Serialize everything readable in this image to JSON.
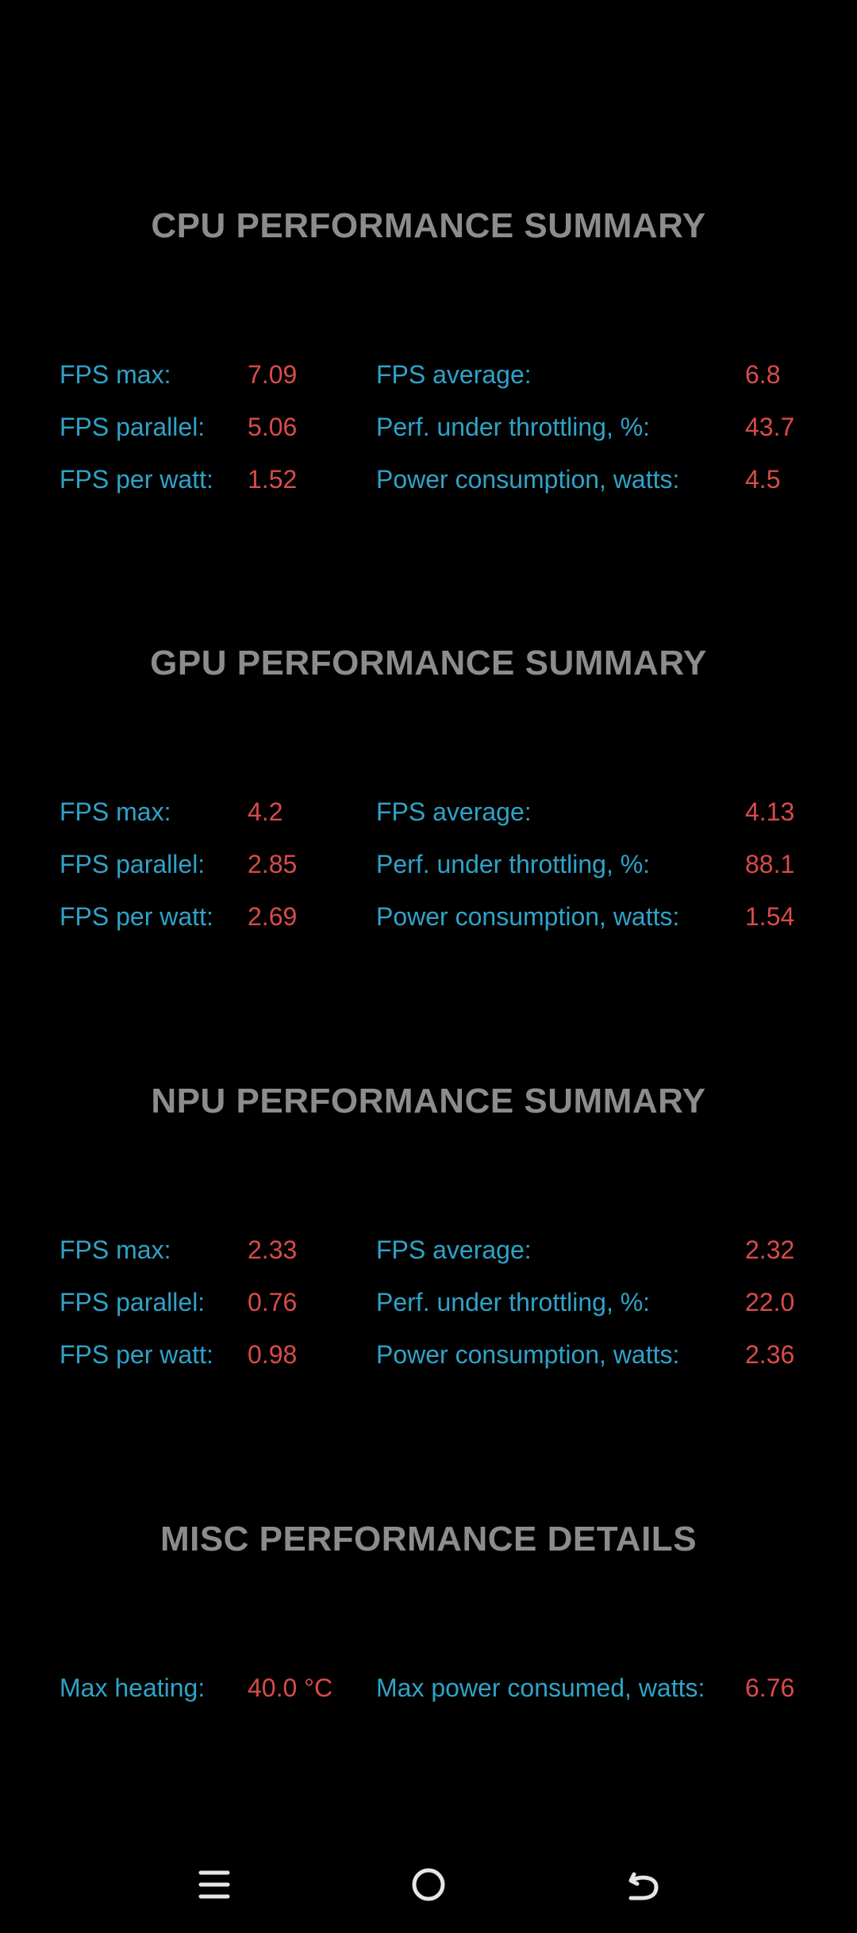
{
  "sections": [
    {
      "title": "CPU PERFORMANCE SUMMARY",
      "rows": [
        {
          "l1": "FPS max:",
          "v1": "7.09",
          "l2": "FPS average:",
          "v2": "6.8"
        },
        {
          "l1": "FPS parallel:",
          "v1": "5.06",
          "l2": "Perf. under throttling, %:",
          "v2": "43.7"
        },
        {
          "l1": "FPS per watt:",
          "v1": "1.52",
          "l2": "Power consumption, watts:",
          "v2": "4.5"
        }
      ]
    },
    {
      "title": "GPU PERFORMANCE SUMMARY",
      "rows": [
        {
          "l1": "FPS max:",
          "v1": "4.2",
          "l2": "FPS average:",
          "v2": "4.13"
        },
        {
          "l1": "FPS parallel:",
          "v1": "2.85",
          "l2": "Perf. under throttling, %:",
          "v2": "88.1"
        },
        {
          "l1": "FPS per watt:",
          "v1": "2.69",
          "l2": "Power consumption, watts:",
          "v2": "1.54"
        }
      ]
    },
    {
      "title": "NPU PERFORMANCE SUMMARY",
      "rows": [
        {
          "l1": "FPS max:",
          "v1": "2.33",
          "l2": "FPS average:",
          "v2": "2.32"
        },
        {
          "l1": "FPS parallel:",
          "v1": "0.76",
          "l2": "Perf. under throttling, %:",
          "v2": "22.0"
        },
        {
          "l1": "FPS per watt:",
          "v1": "0.98",
          "l2": "Power consumption, watts:",
          "v2": "2.36"
        }
      ]
    }
  ],
  "misc": {
    "title": "MISC PERFORMANCE DETAILS",
    "l1": "Max heating:",
    "v1": "40.0 °C",
    "l2": "Max power consumed, watts:",
    "v2": "6.76"
  },
  "navbar": {
    "menu_icon": "menu-icon",
    "home_icon": "home-circle-icon",
    "back_icon": "back-arrow-icon"
  },
  "colors": {
    "background": "#000000",
    "title": "#8c8c8c",
    "label": "#2fa3c8",
    "value": "#d94b4b",
    "nav_icon": "#e6e6e6"
  }
}
